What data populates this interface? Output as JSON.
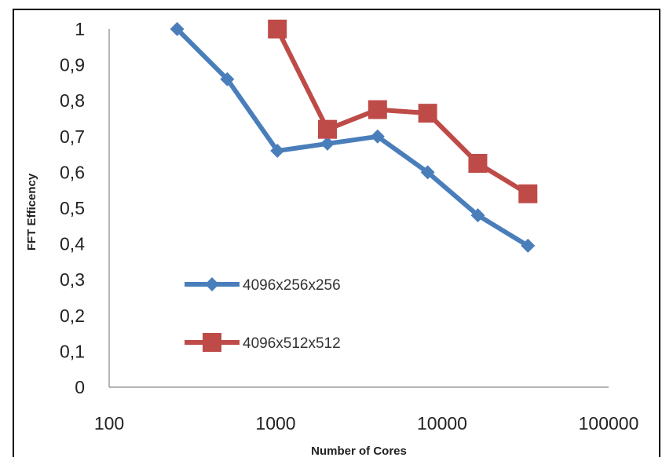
{
  "chart_data": {
    "type": "line",
    "xscale": "log",
    "xlim": [
      100,
      100000
    ],
    "ylim": [
      0,
      1
    ],
    "xlabel": "Number of Cores",
    "ylabel": "FFT Efficency",
    "x_ticks": [
      "100",
      "1000",
      "10000",
      "100000"
    ],
    "y_ticks": [
      "0",
      "0,1",
      "0,2",
      "0,3",
      "0,4",
      "0,5",
      "0,6",
      "0,7",
      "0,8",
      "0,9",
      "1"
    ],
    "grid": false,
    "legend_position": "inside-left",
    "series": [
      {
        "name": "4096x256x256",
        "color": "#4a7ebb",
        "marker": "diamond",
        "x": [
          256,
          512,
          1024,
          2048,
          4096,
          8192,
          16384,
          32768
        ],
        "y": [
          1.0,
          0.86,
          0.66,
          0.68,
          0.7,
          0.6,
          0.48,
          0.395
        ]
      },
      {
        "name": "4096x512x512",
        "color": "#be4b48",
        "marker": "square",
        "x": [
          1024,
          2048,
          4096,
          8192,
          16384,
          32768
        ],
        "y": [
          1.0,
          0.72,
          0.775,
          0.765,
          0.625,
          0.54
        ]
      }
    ]
  }
}
